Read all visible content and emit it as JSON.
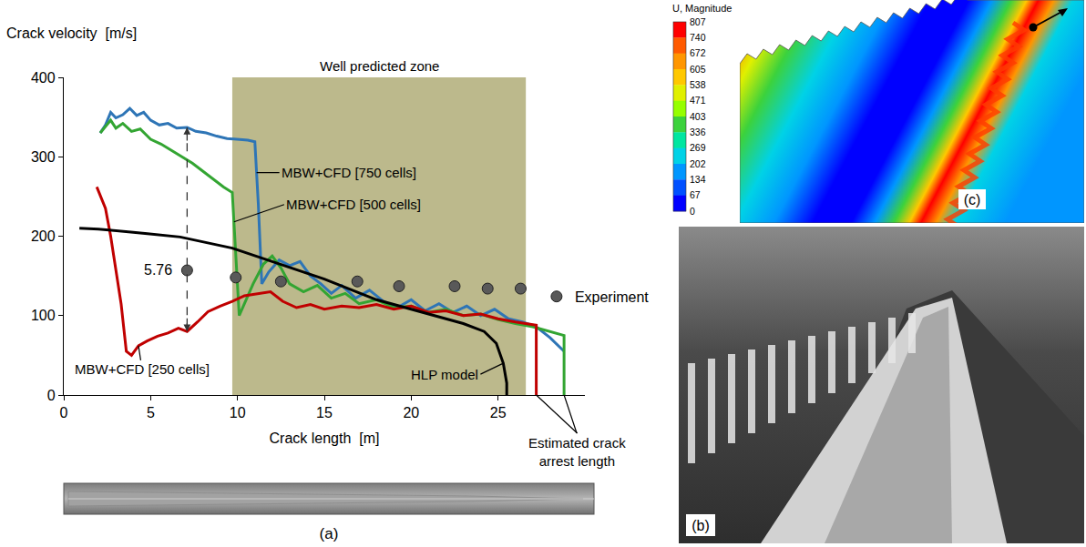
{
  "chart_data": {
    "type": "line",
    "x_label": "Crack length  [m]",
    "y_label": "Crack velocity  [m/s]",
    "xlim": [
      0,
      30
    ],
    "xticks": [
      0,
      5,
      10,
      15,
      20,
      25
    ],
    "ylim": [
      0,
      400
    ],
    "yticks": [
      0,
      100,
      200,
      300,
      400
    ],
    "grid": false,
    "legend": "right",
    "zone": {
      "x": [
        9.7,
        26.6
      ],
      "label": "Well predicted zone",
      "color": "#bcb98c"
    },
    "series": [
      {
        "name": "MBW+CFD [750 cells]",
        "type": "line",
        "color": "#2e75b6",
        "line_style": "solid",
        "x": [
          2.1,
          2.4,
          2.7,
          3.0,
          3.4,
          3.8,
          4.2,
          4.6,
          5.0,
          5.5,
          6.0,
          6.5,
          7.1,
          7.6,
          8.2,
          8.8,
          9.4,
          10.0,
          10.6,
          11.0,
          11.2,
          11.4,
          11.8,
          12.4,
          13.0,
          13.6,
          14.2,
          14.8,
          15.4,
          16.0,
          16.8,
          17.6,
          18.4,
          19.2,
          20.0,
          20.8,
          21.6,
          22.4,
          23.2,
          24.0,
          24.8,
          25.6,
          26.4,
          27.2,
          28.0,
          28.8
        ],
        "values": [
          330,
          340,
          356,
          349,
          353,
          361,
          352,
          356,
          346,
          340,
          342,
          336,
          337,
          332,
          330,
          326,
          323,
          322,
          321,
          319,
          240,
          140,
          155,
          170,
          163,
          168,
          150,
          140,
          128,
          138,
          122,
          132,
          118,
          110,
          120,
          106,
          115,
          104,
          112,
          100,
          108,
          96,
          92,
          86,
          72,
          55
        ]
      },
      {
        "name": "MBW+CFD [500 cells]",
        "type": "line",
        "color": "#33a532",
        "line_style": "solid",
        "x": [
          2.1,
          2.4,
          2.7,
          3.0,
          3.4,
          3.9,
          4.4,
          5.0,
          5.6,
          6.2,
          6.8,
          7.4,
          8.0,
          8.6,
          9.2,
          9.7,
          9.9,
          10.1,
          10.4,
          10.9,
          11.5,
          12.0,
          12.5,
          13.0,
          13.8,
          14.6,
          15.4,
          16.2,
          17.0,
          18.0,
          19.0,
          20.0,
          21.0,
          22.0,
          23.0,
          24.0,
          25.0,
          26.0,
          27.0,
          28.0,
          28.8,
          28.8
        ],
        "values": [
          330,
          338,
          346,
          336,
          342,
          332,
          335,
          322,
          316,
          308,
          300,
          292,
          282,
          272,
          262,
          255,
          180,
          100,
          115,
          140,
          165,
          175,
          160,
          140,
          130,
          138,
          122,
          128,
          115,
          120,
          110,
          112,
          104,
          108,
          100,
          102,
          95,
          90,
          86,
          80,
          75,
          0
        ]
      },
      {
        "name": "MBW+CFD [250 cells]",
        "type": "line",
        "color": "#c00000",
        "line_style": "solid",
        "x": [
          1.9,
          2.1,
          2.4,
          2.7,
          3.0,
          3.3,
          3.6,
          3.9,
          4.3,
          4.8,
          5.4,
          6.0,
          6.6,
          7.1,
          7.7,
          8.3,
          9.0,
          9.7,
          10.4,
          11.2,
          11.9,
          12.6,
          13.4,
          14.2,
          15.0,
          16.0,
          17.0,
          18.0,
          19.0,
          20.0,
          21.0,
          22.0,
          23.0,
          24.0,
          25.0,
          26.0,
          27.2,
          27.2
        ],
        "values": [
          262,
          252,
          235,
          200,
          160,
          115,
          55,
          50,
          62,
          68,
          74,
          78,
          84,
          80,
          92,
          105,
          112,
          118,
          125,
          128,
          130,
          118,
          110,
          114,
          108,
          112,
          110,
          114,
          108,
          112,
          104,
          106,
          100,
          102,
          96,
          92,
          88,
          0
        ]
      },
      {
        "name": "HLP model",
        "type": "line",
        "color": "#000000",
        "line_style": "solid",
        "x": [
          0.9,
          2,
          4,
          6.7,
          9.7,
          12,
          13.4,
          15,
          18,
          20,
          21.6,
          23,
          24.2,
          24.9,
          25.3,
          25.5,
          25.5
        ],
        "values": [
          210,
          209,
          205,
          199,
          185,
          168,
          157,
          146,
          120,
          108,
          98,
          90,
          80,
          65,
          40,
          15,
          0
        ]
      },
      {
        "name": "Experiment",
        "type": "scatter",
        "color": "#595959",
        "marker": "circle",
        "x": [
          7.1,
          9.9,
          12.5,
          16.9,
          19.3,
          22.5,
          24.4,
          26.3
        ],
        "values": [
          157,
          148,
          143,
          143,
          137,
          137,
          134,
          134
        ]
      }
    ],
    "annotations": [
      {
        "text": "MBW+CFD [750 cells]",
        "x": 11.1,
        "y": 280
      },
      {
        "text": "MBW+CFD [500 cells]",
        "x": 9.8,
        "y": 218
      },
      {
        "text": "MBW+CFD [250 cells]",
        "x": 4.3,
        "y": 62
      },
      {
        "text": "HLP model",
        "x": 25.3,
        "y": 40
      }
    ],
    "dimension": {
      "text": "5.76",
      "x": 7.1,
      "y": [
        80,
        337
      ],
      "line_style": "dashed"
    },
    "arrest": {
      "text": "Estimated crack arrest length",
      "x": [
        27.2,
        28.8
      ],
      "y": 0
    }
  },
  "panels": {
    "a": {
      "label": "(a)"
    },
    "b": {
      "label": "(b)"
    },
    "c": {
      "label": "(c)",
      "colorbar_title": "U, Magnitude",
      "colorbar_ticks": [
        807,
        740,
        672,
        605,
        538,
        471,
        403,
        336,
        269,
        202,
        134,
        67,
        0
      ]
    }
  }
}
